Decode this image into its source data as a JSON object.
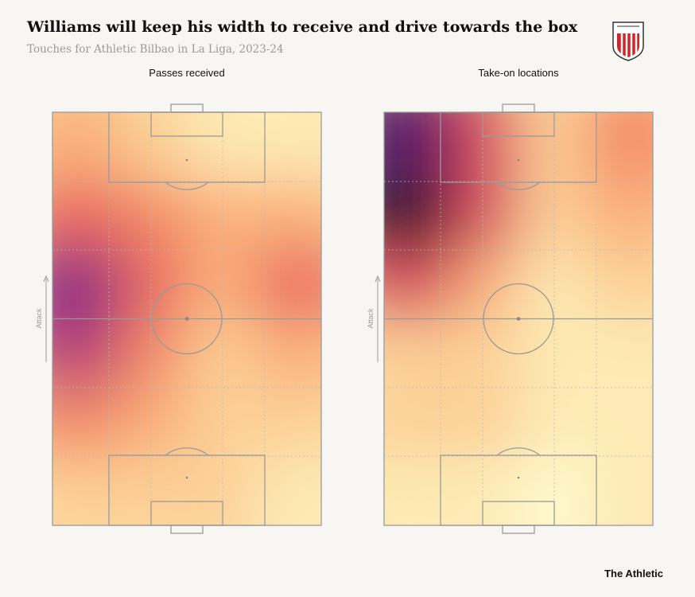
{
  "header": {
    "title": "Williams will keep his width to receive and drive towards the box",
    "subtitle": "Touches for Athletic Bilbao in La Liga, 2023-24"
  },
  "chart_data": [
    {
      "type": "heatmap",
      "title": "Passes received",
      "direction_label": "Attack",
      "zlim": [
        0,
        10
      ],
      "colors": [
        "#fdfbd0",
        "#fde2a8",
        "#fbb57e",
        "#f27f62",
        "#e2505c",
        "#b33a7a",
        "#6a1b8a",
        "#1a0d1a"
      ],
      "values": [
        [
          3,
          2,
          1,
          1
        ],
        [
          5,
          4,
          3,
          3
        ],
        [
          8,
          5,
          3,
          5
        ],
        [
          7,
          4,
          2,
          3
        ],
        [
          4,
          3,
          2,
          2
        ],
        [
          2,
          2,
          2,
          1
        ]
      ]
    },
    {
      "type": "heatmap",
      "title": "Take-on locations",
      "direction_label": "Attack",
      "zlim": [
        0,
        10
      ],
      "colors": [
        "#fdfbd0",
        "#fde2a8",
        "#fbb57e",
        "#f27f62",
        "#e2505c",
        "#b33a7a",
        "#6a1b8a",
        "#1a0d1a"
      ],
      "values": [
        [
          9,
          6,
          2,
          4
        ],
        [
          10,
          6,
          2,
          3
        ],
        [
          6,
          3,
          1,
          2
        ],
        [
          2,
          2,
          1,
          1
        ],
        [
          2,
          2,
          1,
          1
        ],
        [
          1,
          1,
          0,
          1
        ]
      ]
    }
  ],
  "footer": {
    "brand": "The Athletic"
  }
}
